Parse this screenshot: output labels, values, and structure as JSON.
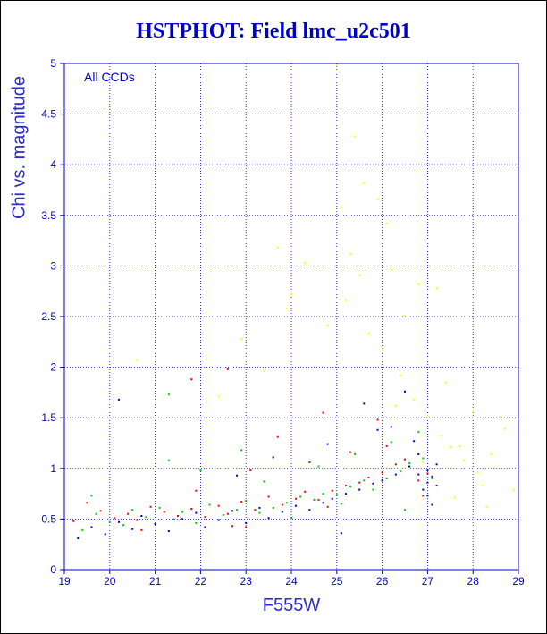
{
  "chart_data": {
    "type": "scatter",
    "title": "HSTPHOT: Field lmc_u2c501",
    "xlabel": "F555W",
    "ylabel": "Chi vs. magnitude",
    "annotation": "All CCDs",
    "xlim": [
      19,
      29
    ],
    "ylim": [
      0,
      5
    ],
    "x_ticks": [
      "19",
      "20",
      "21",
      "22",
      "23",
      "24",
      "25",
      "26",
      "27",
      "28",
      "29"
    ],
    "y_ticks": [
      "0",
      "0.5",
      "1",
      "1.5",
      "2",
      "2.5",
      "3",
      "3.5",
      "4",
      "4.5",
      "5"
    ],
    "grid": true,
    "legend": "none",
    "series": [
      {
        "color": "#ff0000",
        "x": [
          19.2,
          19.5,
          19.8,
          20.1,
          20.4,
          20.6,
          20.9,
          21.2,
          21.5,
          21.8,
          22.1,
          22.4,
          22.6,
          22.9,
          23.2,
          23.5,
          23.8,
          24.1,
          24.3,
          24.6,
          24.9,
          25.2,
          25.5,
          25.7,
          26.0,
          26.3,
          26.5,
          26.8,
          27.0,
          21.9,
          23.1,
          24.4,
          25.3,
          26.1,
          26.9,
          22.7,
          24.8,
          25.9,
          20.7,
          23.7,
          21.8,
          22.6,
          24.7,
          23.0
        ],
        "y": [
          0.48,
          0.66,
          0.58,
          0.51,
          0.55,
          0.49,
          0.62,
          0.57,
          0.53,
          0.6,
          0.52,
          0.63,
          0.55,
          0.67,
          0.59,
          0.72,
          0.64,
          0.7,
          0.77,
          0.69,
          0.78,
          0.83,
          0.86,
          0.91,
          0.96,
          1.04,
          1.09,
          0.88,
          0.95,
          0.78,
          0.98,
          1.06,
          1.16,
          1.22,
          0.73,
          0.43,
          0.62,
          1.48,
          0.39,
          1.31,
          1.88,
          1.98,
          1.55,
          0.42
        ]
      },
      {
        "color": "#00cc00",
        "x": [
          19.4,
          19.7,
          20.0,
          20.3,
          20.5,
          20.8,
          21.1,
          21.4,
          21.6,
          21.9,
          22.2,
          22.5,
          22.8,
          23.0,
          23.3,
          23.6,
          23.9,
          24.2,
          24.5,
          24.7,
          25.0,
          25.3,
          25.6,
          25.8,
          26.1,
          26.4,
          26.6,
          26.9,
          27.1,
          21.3,
          22.0,
          23.4,
          24.6,
          25.4,
          26.2,
          26.8,
          19.6,
          22.9,
          24.0,
          25.1,
          21.3,
          26.5
        ],
        "y": [
          0.39,
          0.55,
          0.47,
          0.44,
          0.59,
          0.52,
          0.61,
          0.5,
          0.57,
          0.46,
          0.64,
          0.54,
          0.59,
          0.68,
          0.56,
          0.61,
          0.66,
          0.72,
          0.69,
          0.75,
          0.74,
          0.82,
          0.88,
          0.79,
          0.9,
          0.97,
          1.05,
          1.1,
          0.9,
          1.08,
          0.98,
          0.87,
          1.02,
          1.14,
          1.26,
          1.36,
          0.73,
          1.18,
          0.51,
          0.65,
          1.73,
          0.59
        ]
      },
      {
        "color": "#0000cc",
        "x": [
          19.3,
          19.6,
          19.9,
          20.2,
          20.5,
          20.7,
          21.0,
          21.3,
          21.6,
          21.9,
          22.1,
          22.4,
          22.7,
          23.0,
          23.3,
          23.5,
          23.8,
          24.1,
          24.4,
          24.7,
          24.9,
          25.2,
          25.5,
          25.8,
          26.0,
          26.3,
          26.6,
          26.8,
          27.0,
          27.0,
          27.1,
          27.2,
          26.9,
          27.0,
          27.1,
          26.8,
          27.2,
          26.7,
          25.9,
          24.8,
          23.6,
          22.8,
          26.2,
          26.5,
          20.2,
          25.6,
          25.1
        ],
        "y": [
          0.31,
          0.42,
          0.35,
          0.47,
          0.4,
          0.53,
          0.45,
          0.38,
          0.5,
          0.56,
          0.42,
          0.49,
          0.58,
          0.46,
          0.61,
          0.51,
          0.57,
          0.63,
          0.59,
          0.66,
          0.7,
          0.75,
          0.79,
          0.85,
          0.88,
          0.94,
          1.02,
          1.14,
          0.98,
          0.86,
          0.92,
          1.04,
          0.79,
          0.73,
          0.64,
          0.94,
          0.83,
          1.27,
          1.38,
          1.24,
          1.11,
          0.93,
          1.41,
          1.76,
          1.68,
          1.64,
          0.36
        ]
      },
      {
        "color": "#ffff00",
        "x": [
          25.0,
          25.4,
          25.6,
          25.9,
          26.2,
          26.5,
          26.7,
          27.0,
          27.3,
          27.5,
          27.8,
          28.1,
          28.4,
          28.7,
          28.9,
          26.0,
          26.4,
          25.7,
          25.2,
          24.8,
          24.3,
          23.9,
          23.4,
          22.9,
          27.6,
          28.0,
          28.6,
          26.8,
          27.2,
          25.1,
          25.3,
          27.4,
          28.3,
          26.3,
          24.0,
          23.7,
          22.4,
          20.6,
          26.9,
          27.7,
          28.2,
          25.5,
          26.1
        ],
        "y": [
          4.98,
          4.28,
          3.82,
          3.66,
          2.96,
          2.51,
          1.68,
          1.52,
          1.32,
          1.21,
          1.08,
          0.96,
          1.14,
          1.39,
          0.79,
          2.18,
          1.92,
          2.33,
          2.66,
          2.41,
          3.03,
          2.58,
          1.96,
          2.28,
          0.71,
          1.57,
          1.51,
          2.82,
          2.78,
          3.58,
          3.12,
          1.85,
          0.62,
          1.62,
          2.72,
          3.18,
          1.71,
          2.07,
          1.06,
          1.22,
          0.83,
          2.91,
          3.42
        ]
      }
    ]
  }
}
